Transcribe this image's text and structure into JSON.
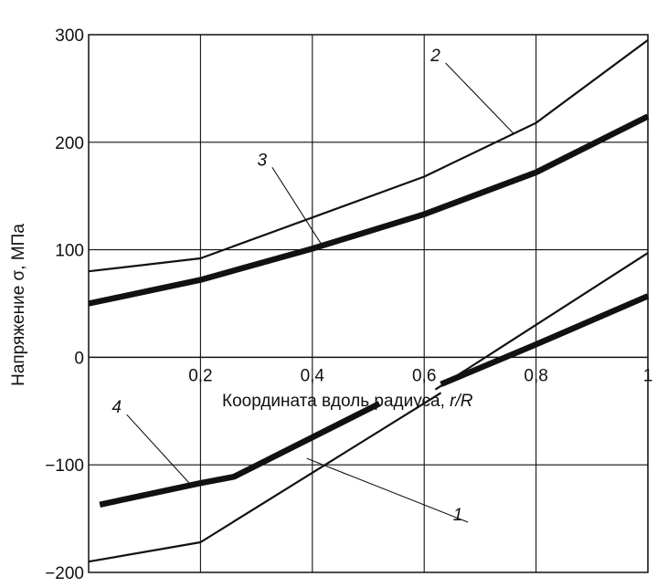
{
  "chart_data": {
    "type": "line",
    "title": "",
    "xlabel_main": "Координата вдоль радиуса, ",
    "xlabel_var": "r/R",
    "ylabel": "Напряжение σ, МПа",
    "xlim": [
      0,
      1
    ],
    "ylim": [
      -200,
      300
    ],
    "grid": true,
    "x_ticks": [
      0.2,
      0.4,
      0.6,
      0.8,
      1
    ],
    "x_tick_labels": [
      "0,2",
      "0,4",
      "0,6",
      "0,8",
      "1"
    ],
    "y_ticks": [
      300,
      200,
      100,
      0,
      -100,
      -200
    ],
    "y_tick_labels": [
      "300",
      "200",
      "100",
      "0",
      "−100",
      "−200"
    ],
    "series": [
      {
        "name": "1",
        "style": "thin",
        "segments": [
          [
            [
              0,
              -190
            ],
            [
              0.2,
              -172
            ],
            [
              0.63,
              -33
            ]
          ],
          [
            [
              0.62,
              -30
            ],
            [
              1,
              97
            ]
          ]
        ],
        "label_pos": [
          0.67,
          -155
        ],
        "leader_to": [
          0.39,
          -94
        ]
      },
      {
        "name": "2",
        "style": "thin",
        "segments": [
          [
            [
              0,
              80
            ],
            [
              0.2,
              92
            ],
            [
              0.6,
              168
            ],
            [
              0.8,
              218
            ],
            [
              1,
              295
            ]
          ]
        ],
        "label_pos": [
          0.63,
          272
        ],
        "leader_to": [
          0.76,
          208
        ]
      },
      {
        "name": "3",
        "style": "thick",
        "segments": [
          [
            [
              0,
              50
            ],
            [
              0.2,
              72
            ],
            [
              0.4,
              101
            ],
            [
              0.6,
              133
            ],
            [
              0.8,
              172
            ],
            [
              1,
              224
            ]
          ],
          [
            [
              0.63,
              -25
            ],
            [
              0.8,
              12
            ],
            [
              1,
              57
            ]
          ]
        ],
        "label_pos": [
          0.32,
          175
        ],
        "leader_to": [
          0.42,
          102
        ]
      },
      {
        "name": "4",
        "style": "thick",
        "segments": [
          [
            [
              0.02,
              -137
            ],
            [
              0.2,
              -117
            ],
            [
              0.26,
              -111
            ],
            [
              0.52,
              -43
            ]
          ]
        ],
        "label_pos": [
          0.06,
          -55
        ],
        "leader_to": [
          0.18,
          -117
        ]
      }
    ]
  }
}
